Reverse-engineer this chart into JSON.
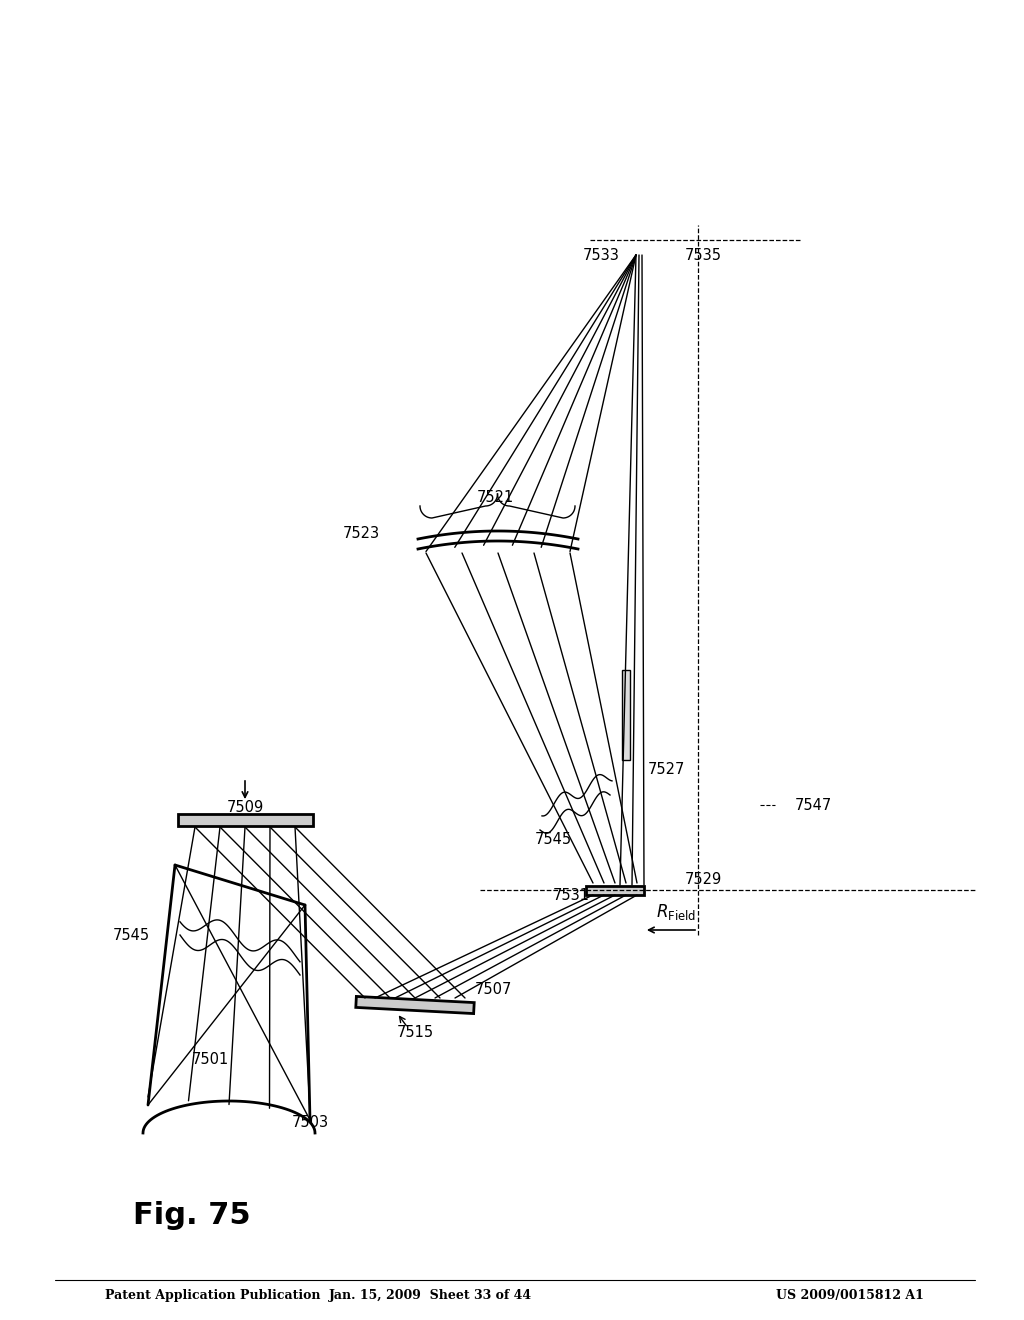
{
  "bg_color": "#ffffff",
  "header_left": "Patent Application Publication",
  "header_center": "Jan. 15, 2009  Sheet 33 of 44",
  "header_right": "US 2009/0015812 A1",
  "fig_label": "Fig. 75"
}
